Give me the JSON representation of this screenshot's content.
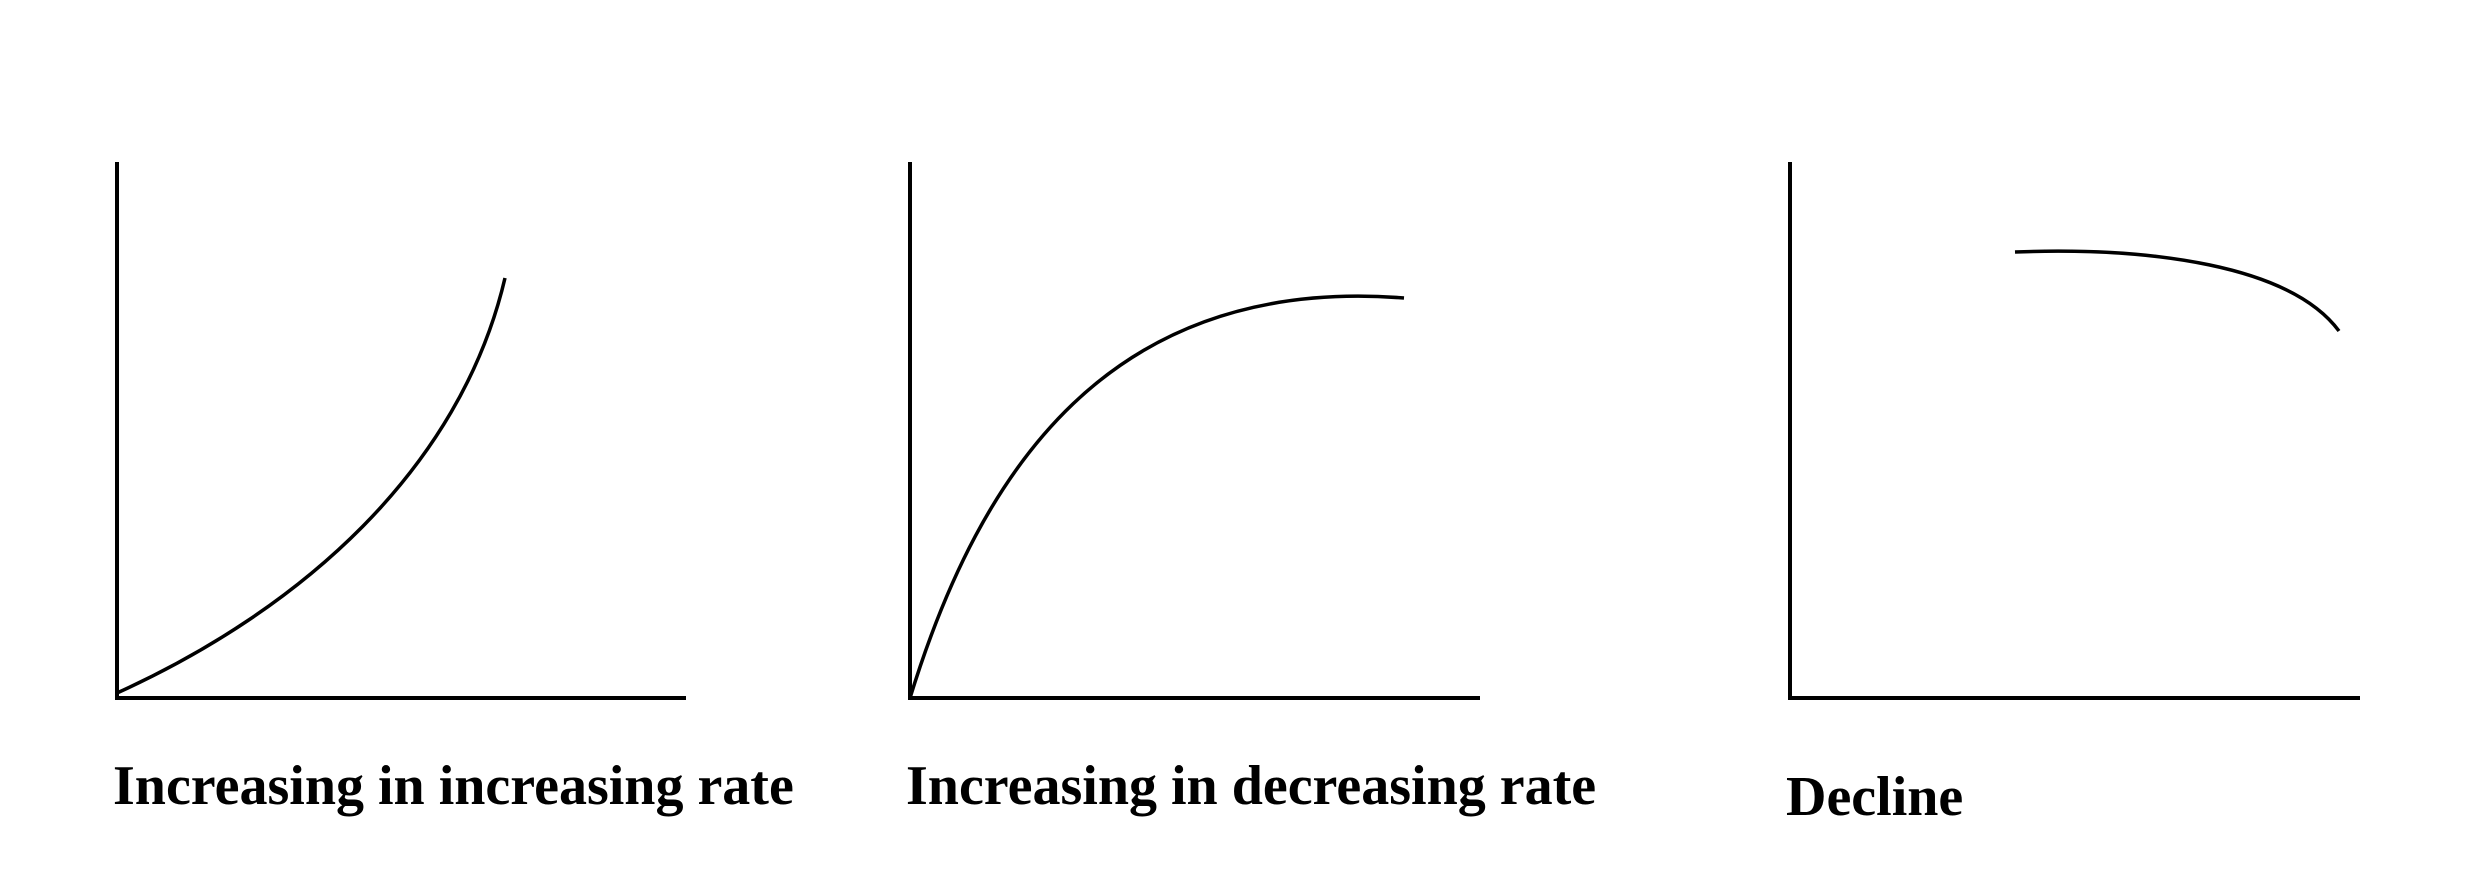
{
  "panels": [
    {
      "caption": "Increasing in increasing rate"
    },
    {
      "caption": "Increasing in decreasing rate"
    },
    {
      "caption": "Decline"
    }
  ],
  "colors": {
    "background": "#ffffff",
    "line": "#000000"
  }
}
